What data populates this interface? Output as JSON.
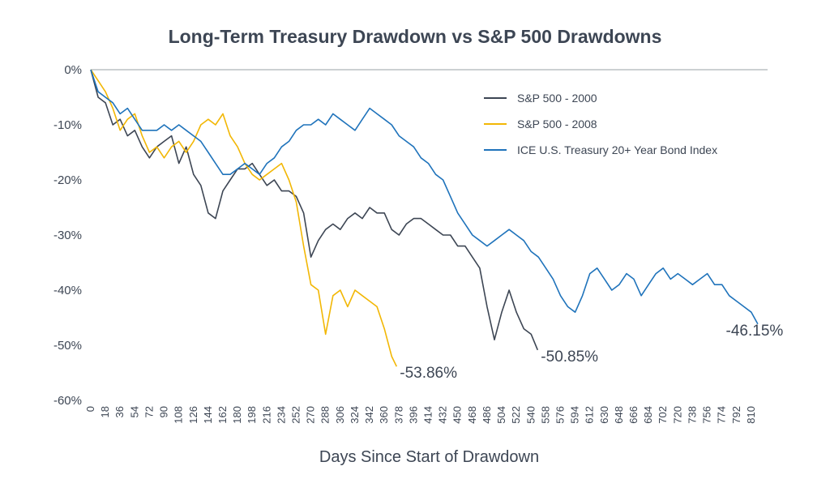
{
  "chart_data": {
    "type": "line",
    "title": "Long-Term Treasury Drawdown vs S&P 500 Drawdowns",
    "xlabel": "Days Since Start of Drawdown",
    "ylabel": "",
    "xlim": [
      0,
      830
    ],
    "ylim": [
      -60,
      0
    ],
    "yticks": [
      "0%",
      "-10%",
      "-20%",
      "-30%",
      "-40%",
      "-50%",
      "-60%"
    ],
    "yticks_values": [
      0,
      -10,
      -20,
      -30,
      -40,
      -50,
      -60
    ],
    "xticks": [
      "0",
      "18",
      "36",
      "54",
      "72",
      "90",
      "108",
      "126",
      "144",
      "162",
      "180",
      "198",
      "216",
      "234",
      "252",
      "270",
      "288",
      "306",
      "324",
      "342",
      "360",
      "378",
      "396",
      "414",
      "432",
      "450",
      "468",
      "486",
      "504",
      "522",
      "540",
      "558",
      "576",
      "594",
      "612",
      "630",
      "648",
      "666",
      "684",
      "702",
      "720",
      "738",
      "756",
      "774",
      "792",
      "810"
    ],
    "grid": false,
    "legend_position": "top-right",
    "series": [
      {
        "name": "S&P 500 - 2000",
        "color": "#3d4654",
        "end_label": "-50.85%",
        "points": [
          [
            0,
            0
          ],
          [
            9,
            -5
          ],
          [
            18,
            -6
          ],
          [
            27,
            -10
          ],
          [
            36,
            -9
          ],
          [
            45,
            -12
          ],
          [
            54,
            -11
          ],
          [
            63,
            -14
          ],
          [
            72,
            -16
          ],
          [
            81,
            -14
          ],
          [
            90,
            -13
          ],
          [
            99,
            -12
          ],
          [
            108,
            -17
          ],
          [
            117,
            -14
          ],
          [
            126,
            -19
          ],
          [
            135,
            -21
          ],
          [
            144,
            -26
          ],
          [
            153,
            -27
          ],
          [
            162,
            -22
          ],
          [
            171,
            -20
          ],
          [
            180,
            -18
          ],
          [
            189,
            -18
          ],
          [
            198,
            -17
          ],
          [
            207,
            -19
          ],
          [
            216,
            -21
          ],
          [
            225,
            -20
          ],
          [
            234,
            -22
          ],
          [
            243,
            -22
          ],
          [
            252,
            -23
          ],
          [
            261,
            -26
          ],
          [
            270,
            -34
          ],
          [
            279,
            -31
          ],
          [
            288,
            -29
          ],
          [
            297,
            -28
          ],
          [
            306,
            -29
          ],
          [
            315,
            -27
          ],
          [
            324,
            -26
          ],
          [
            333,
            -27
          ],
          [
            342,
            -25
          ],
          [
            351,
            -26
          ],
          [
            360,
            -26
          ],
          [
            369,
            -29
          ],
          [
            378,
            -30
          ],
          [
            387,
            -28
          ],
          [
            396,
            -27
          ],
          [
            405,
            -27
          ],
          [
            414,
            -28
          ],
          [
            423,
            -29
          ],
          [
            432,
            -30
          ],
          [
            441,
            -30
          ],
          [
            450,
            -32
          ],
          [
            459,
            -32
          ],
          [
            468,
            -34
          ],
          [
            477,
            -36
          ],
          [
            486,
            -43
          ],
          [
            495,
            -49
          ],
          [
            504,
            -44
          ],
          [
            513,
            -40
          ],
          [
            522,
            -44
          ],
          [
            531,
            -47
          ],
          [
            540,
            -48
          ],
          [
            548,
            -50.85
          ]
        ]
      },
      {
        "name": "S&P 500 - 2008",
        "color": "#f2b705",
        "end_label": "-53.86%",
        "points": [
          [
            0,
            0
          ],
          [
            9,
            -2
          ],
          [
            18,
            -4
          ],
          [
            27,
            -7
          ],
          [
            36,
            -11
          ],
          [
            45,
            -9
          ],
          [
            54,
            -8
          ],
          [
            63,
            -12
          ],
          [
            72,
            -15
          ],
          [
            81,
            -14
          ],
          [
            90,
            -16
          ],
          [
            99,
            -14
          ],
          [
            108,
            -13
          ],
          [
            117,
            -15
          ],
          [
            126,
            -13
          ],
          [
            135,
            -10
          ],
          [
            144,
            -9
          ],
          [
            153,
            -10
          ],
          [
            162,
            -8
          ],
          [
            171,
            -12
          ],
          [
            180,
            -14
          ],
          [
            189,
            -17
          ],
          [
            198,
            -19
          ],
          [
            207,
            -20
          ],
          [
            216,
            -19
          ],
          [
            225,
            -18
          ],
          [
            234,
            -17
          ],
          [
            243,
            -20
          ],
          [
            252,
            -24
          ],
          [
            261,
            -32
          ],
          [
            270,
            -39
          ],
          [
            279,
            -40
          ],
          [
            288,
            -48
          ],
          [
            297,
            -41
          ],
          [
            306,
            -40
          ],
          [
            315,
            -43
          ],
          [
            324,
            -40
          ],
          [
            333,
            -41
          ],
          [
            342,
            -42
          ],
          [
            351,
            -43
          ],
          [
            360,
            -47
          ],
          [
            369,
            -52
          ],
          [
            375,
            -53.86
          ]
        ]
      },
      {
        "name": "ICE U.S. Treasury 20+ Year Bond Index",
        "color": "#1f73bb",
        "end_label": "-46.15%",
        "points": [
          [
            0,
            0
          ],
          [
            9,
            -4
          ],
          [
            18,
            -5
          ],
          [
            27,
            -6
          ],
          [
            36,
            -8
          ],
          [
            45,
            -7
          ],
          [
            54,
            -9
          ],
          [
            63,
            -11
          ],
          [
            72,
            -11
          ],
          [
            81,
            -11
          ],
          [
            90,
            -10
          ],
          [
            99,
            -11
          ],
          [
            108,
            -10
          ],
          [
            117,
            -11
          ],
          [
            126,
            -12
          ],
          [
            135,
            -13
          ],
          [
            144,
            -15
          ],
          [
            153,
            -17
          ],
          [
            162,
            -19
          ],
          [
            171,
            -19
          ],
          [
            180,
            -18
          ],
          [
            189,
            -17
          ],
          [
            198,
            -18
          ],
          [
            207,
            -19
          ],
          [
            216,
            -17
          ],
          [
            225,
            -16
          ],
          [
            234,
            -14
          ],
          [
            243,
            -13
          ],
          [
            252,
            -11
          ],
          [
            261,
            -10
          ],
          [
            270,
            -10
          ],
          [
            279,
            -9
          ],
          [
            288,
            -10
          ],
          [
            297,
            -8
          ],
          [
            306,
            -9
          ],
          [
            315,
            -10
          ],
          [
            324,
            -11
          ],
          [
            333,
            -9
          ],
          [
            342,
            -7
          ],
          [
            351,
            -8
          ],
          [
            360,
            -9
          ],
          [
            369,
            -10
          ],
          [
            378,
            -12
          ],
          [
            387,
            -13
          ],
          [
            396,
            -14
          ],
          [
            405,
            -16
          ],
          [
            414,
            -17
          ],
          [
            423,
            -19
          ],
          [
            432,
            -20
          ],
          [
            441,
            -23
          ],
          [
            450,
            -26
          ],
          [
            459,
            -28
          ],
          [
            468,
            -30
          ],
          [
            477,
            -31
          ],
          [
            486,
            -32
          ],
          [
            495,
            -31
          ],
          [
            504,
            -30
          ],
          [
            513,
            -29
          ],
          [
            522,
            -30
          ],
          [
            531,
            -31
          ],
          [
            540,
            -33
          ],
          [
            549,
            -34
          ],
          [
            558,
            -36
          ],
          [
            567,
            -38
          ],
          [
            576,
            -41
          ],
          [
            585,
            -43
          ],
          [
            594,
            -44
          ],
          [
            603,
            -41
          ],
          [
            612,
            -37
          ],
          [
            621,
            -36
          ],
          [
            630,
            -38
          ],
          [
            639,
            -40
          ],
          [
            648,
            -39
          ],
          [
            657,
            -37
          ],
          [
            666,
            -38
          ],
          [
            675,
            -41
          ],
          [
            684,
            -39
          ],
          [
            693,
            -37
          ],
          [
            702,
            -36
          ],
          [
            711,
            -38
          ],
          [
            720,
            -37
          ],
          [
            729,
            -38
          ],
          [
            738,
            -39
          ],
          [
            747,
            -38
          ],
          [
            756,
            -37
          ],
          [
            765,
            -39
          ],
          [
            774,
            -39
          ],
          [
            783,
            -41
          ],
          [
            792,
            -42
          ],
          [
            801,
            -43
          ],
          [
            810,
            -44
          ],
          [
            818,
            -46.15
          ]
        ]
      }
    ]
  }
}
